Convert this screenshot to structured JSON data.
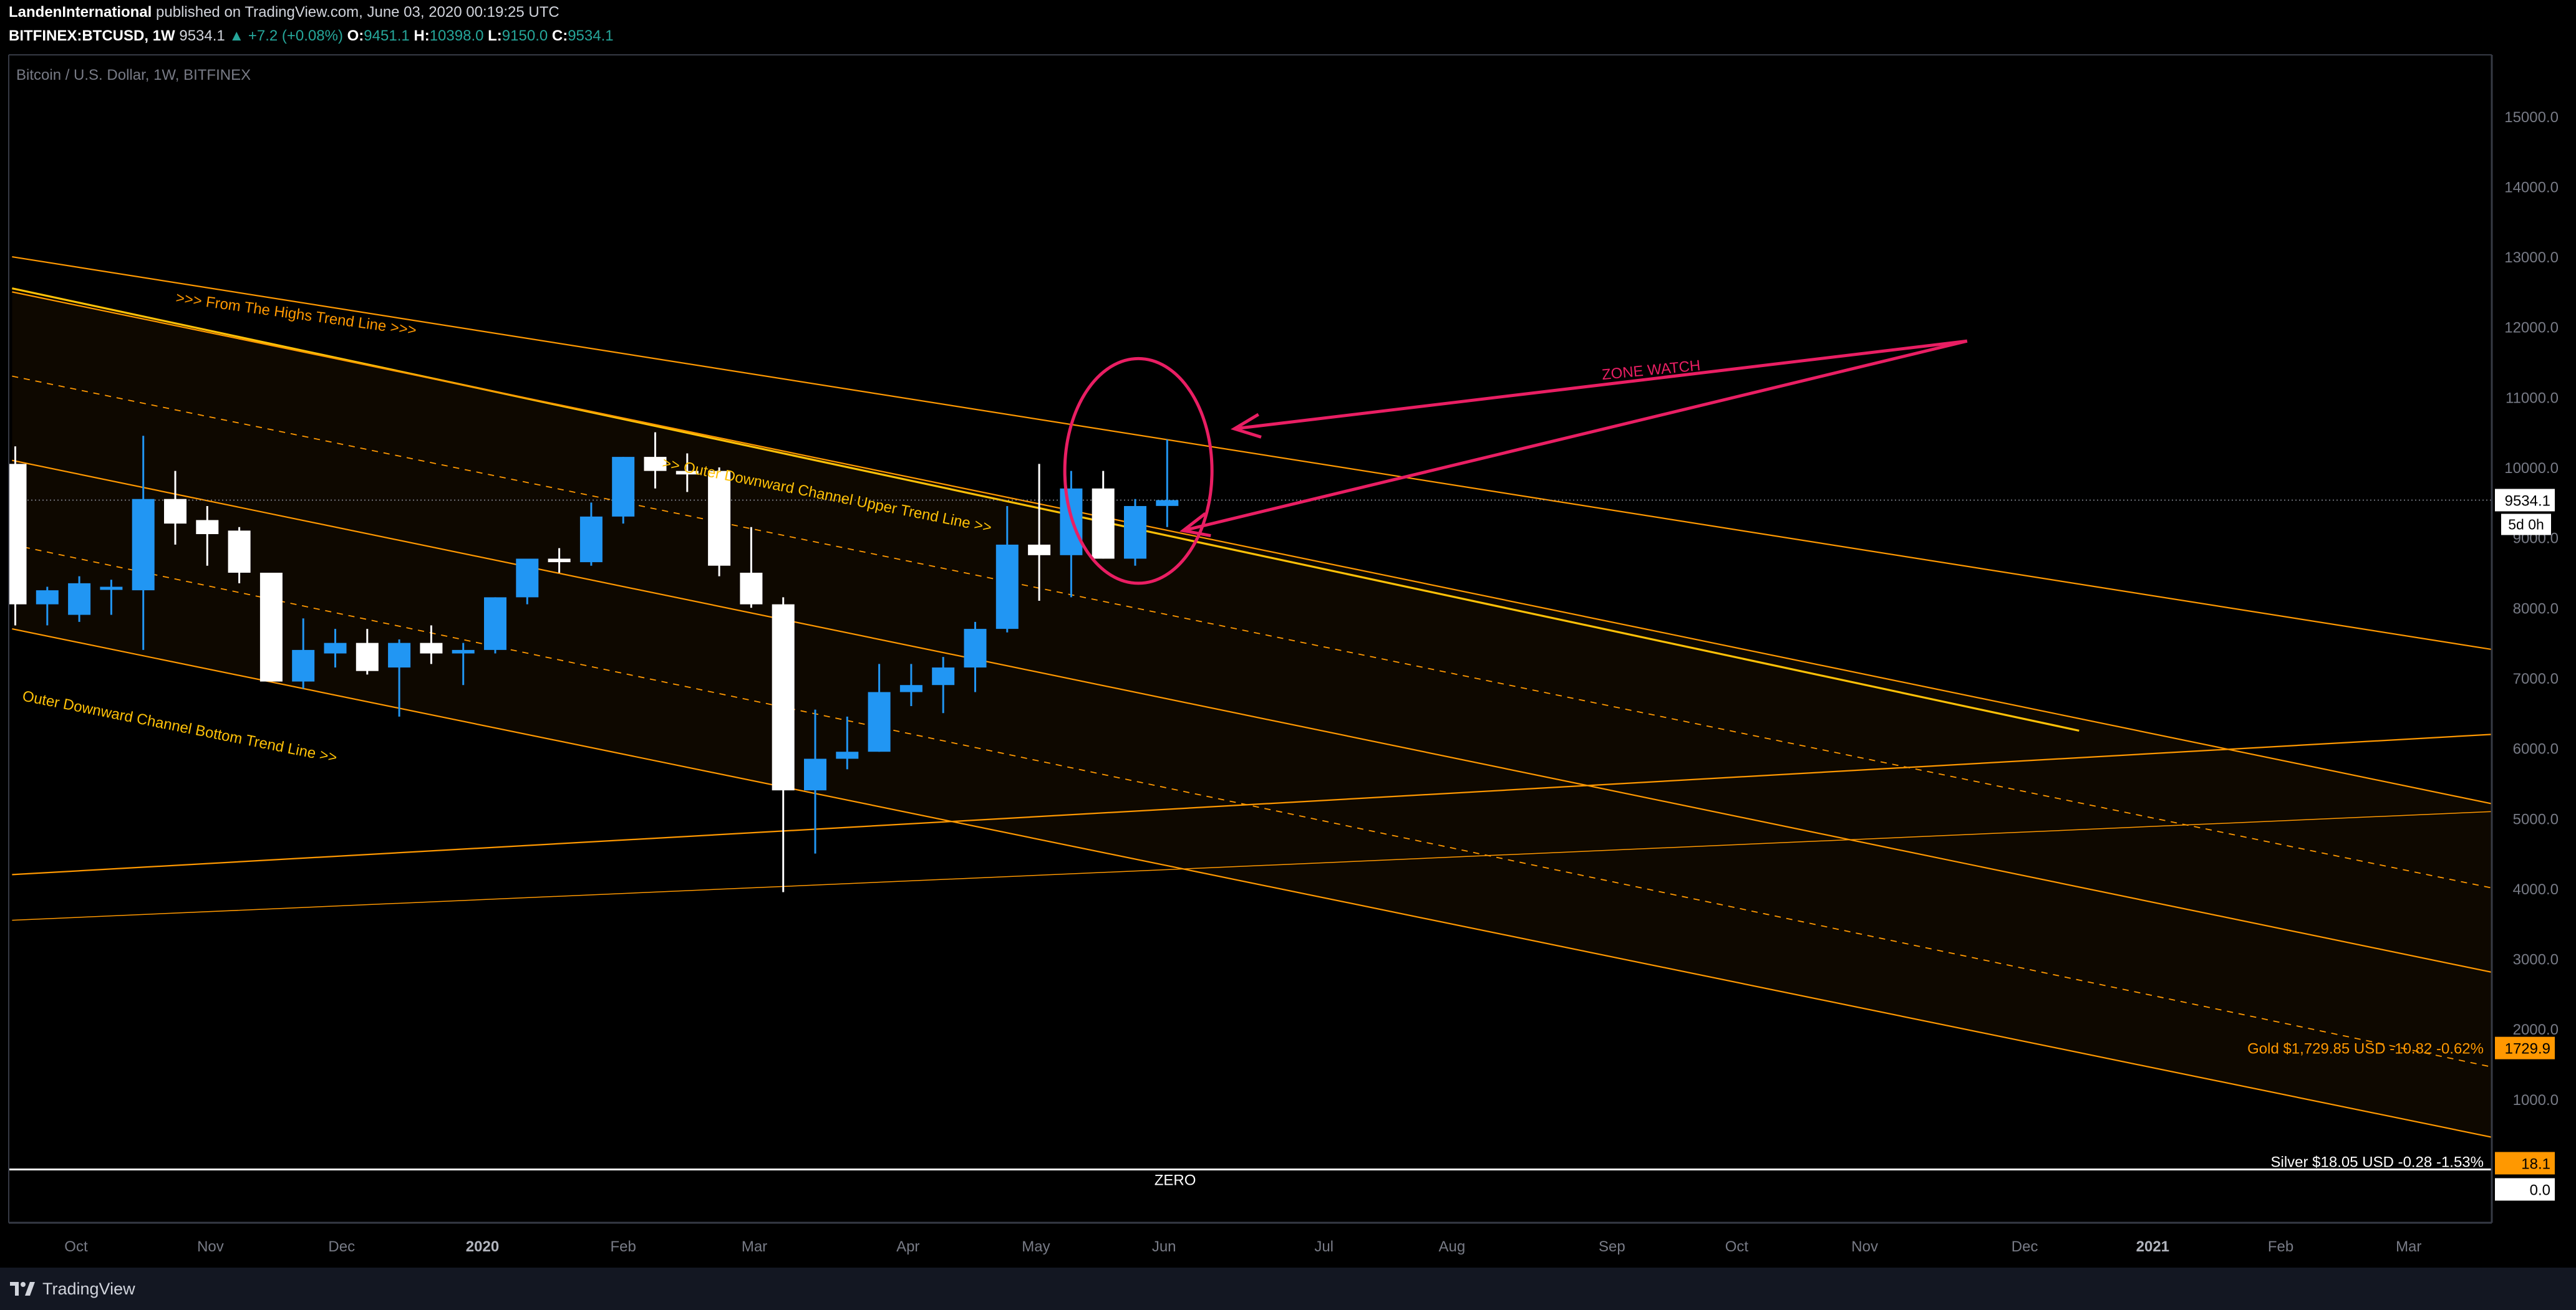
{
  "header": {
    "author": "LandenInternational",
    "published_text": "published on TradingView.com, June 03, 2020 00:19:25 UTC",
    "symbol": "BITFINEX:BTCUSD, 1W",
    "last": "9534.1",
    "change": "▲ +7.2 (+0.08%)",
    "o_label": "O:",
    "o": "9451.1",
    "h_label": "H:",
    "h": "10398.0",
    "l_label": "L:",
    "l": "9150.0",
    "c_label": "C:",
    "c": "9534.1"
  },
  "footer": {
    "brand": "TradingView"
  },
  "colors": {
    "bull": "#2196f3",
    "bear": "#ffffff",
    "trend": "#ff9800",
    "trend_bright": "#ffc107",
    "pink": "#e91e63",
    "axis_bg": "#131722"
  },
  "chart_data": {
    "type": "candlestick",
    "title": "Bitcoin / U.S. Dollar, 1W, BITFINEX",
    "ylim": [
      -800,
      15800
    ],
    "y_ticks": [
      {
        "value": 15000,
        "label": "15000.0"
      },
      {
        "value": 14000,
        "label": "14000.0"
      },
      {
        "value": 13000,
        "label": "13000.0"
      },
      {
        "value": 12000,
        "label": "12000.0"
      },
      {
        "value": 11000,
        "label": "11000.0"
      },
      {
        "value": 10000,
        "label": "10000.0"
      },
      {
        "value": 9000,
        "label": "9000.0"
      },
      {
        "value": 8000,
        "label": "8000.0"
      },
      {
        "value": 7000,
        "label": "7000.0"
      },
      {
        "value": 6000,
        "label": "6000.0"
      },
      {
        "value": 5000,
        "label": "5000.0"
      },
      {
        "value": 4000,
        "label": "4000.0"
      },
      {
        "value": 3000,
        "label": "3000.0"
      },
      {
        "value": 2000,
        "label": "2000.0"
      },
      {
        "value": 1000,
        "label": "1000.0"
      }
    ],
    "x_ticks": [
      {
        "week": 1.9,
        "label": "Oct"
      },
      {
        "week": 6.1,
        "label": "Nov"
      },
      {
        "week": 10.2,
        "label": "Dec"
      },
      {
        "week": 14.6,
        "label": "2020"
      },
      {
        "week": 19.0,
        "label": "Feb"
      },
      {
        "week": 23.1,
        "label": "Mar"
      },
      {
        "week": 27.9,
        "label": "Apr"
      },
      {
        "week": 31.9,
        "label": "May"
      },
      {
        "week": 35.9,
        "label": "Jun"
      },
      {
        "week": 40.9,
        "label": "Jul"
      },
      {
        "week": 44.9,
        "label": "Aug"
      },
      {
        "week": 49.9,
        "label": "Sep"
      },
      {
        "week": 53.8,
        "label": "Oct"
      },
      {
        "week": 57.8,
        "label": "Nov"
      },
      {
        "week": 62.8,
        "label": "Dec"
      },
      {
        "week": 66.8,
        "label": "2021"
      },
      {
        "week": 70.8,
        "label": "Feb"
      },
      {
        "week": 74.8,
        "label": "Mar"
      }
    ],
    "candles": [
      [
        10050,
        10300,
        7750,
        8050
      ],
      [
        8050,
        8300,
        7750,
        8250
      ],
      [
        7900,
        8450,
        7800,
        8350
      ],
      [
        8300,
        8400,
        7900,
        8300
      ],
      [
        8250,
        10450,
        7400,
        9550
      ],
      [
        9550,
        9950,
        8900,
        9200
      ],
      [
        9250,
        9450,
        8600,
        9050
      ],
      [
        9100,
        9150,
        8350,
        8500
      ],
      [
        8500,
        8500,
        6950,
        6950
      ],
      [
        6950,
        7850,
        6850,
        7400
      ],
      [
        7350,
        7700,
        7150,
        7500
      ],
      [
        7500,
        7700,
        7050,
        7100
      ],
      [
        7150,
        7550,
        6450,
        7500
      ],
      [
        7500,
        7750,
        7200,
        7350
      ],
      [
        7350,
        7500,
        6900,
        7400
      ],
      [
        7400,
        8150,
        7350,
        8150
      ],
      [
        8150,
        8700,
        8050,
        8700
      ],
      [
        8700,
        8850,
        8500,
        8650
      ],
      [
        8650,
        9500,
        8600,
        9300
      ],
      [
        9300,
        10150,
        9200,
        10150
      ],
      [
        10150,
        10500,
        9700,
        9950
      ],
      [
        9950,
        10200,
        9650,
        9900
      ],
      [
        9950,
        10000,
        8450,
        8600
      ],
      [
        8500,
        9150,
        8000,
        8050
      ],
      [
        8050,
        8150,
        3950,
        5400
      ],
      [
        5400,
        6550,
        4500,
        5850
      ],
      [
        5850,
        6450,
        5700,
        5950
      ],
      [
        5950,
        7200,
        5950,
        6800
      ],
      [
        6800,
        7200,
        6600,
        6900
      ],
      [
        6900,
        7300,
        6500,
        7150
      ],
      [
        7150,
        7800,
        6800,
        7700
      ],
      [
        7700,
        9450,
        7650,
        8900
      ],
      [
        8900,
        10050,
        8100,
        8750
      ],
      [
        8750,
        9950,
        8150,
        9700
      ],
      [
        9700,
        9950,
        8700,
        8700
      ],
      [
        8700,
        9550,
        8600,
        9450
      ],
      [
        9451.1,
        10398.0,
        9150.0,
        9534.1
      ]
    ],
    "price_line": {
      "value": 9534.1,
      "label": "9534.1",
      "countdown": "5d 0h"
    },
    "right_labels": {
      "gold_value": 1729.9,
      "gold_tag": "1729.9",
      "gold_text": "Gold $1,729.85 USD  -10.82 -0.62%",
      "silver_value": 18.1,
      "silver_tag": "18.1",
      "silver_text": "Silver  $18.05 USD  -0.28  -1.53%",
      "zero_tag": "0.0"
    },
    "zero_line": {
      "value": 0,
      "label": "ZERO"
    },
    "trend_lines": [
      {
        "p1": [
          -0.1,
          13000
        ],
        "p2": [
          77.5,
          7400
        ],
        "color": "#ff9800",
        "width": 2.2,
        "dash": false
      },
      {
        "p1": [
          -0.1,
          12550
        ],
        "p2": [
          64.5,
          6250
        ],
        "color": "#ffc107",
        "width": 3.2,
        "dash": false
      },
      {
        "p1": [
          -0.1,
          12500
        ],
        "p2": [
          77.5,
          5200
        ],
        "color": "#ff9800",
        "width": 2.2,
        "dash": false
      },
      {
        "p1": [
          -0.1,
          11300
        ],
        "p2": [
          77.5,
          4000
        ],
        "color": "#ff9800",
        "width": 1.8,
        "dash": true
      },
      {
        "p1": [
          -0.1,
          10100
        ],
        "p2": [
          77.5,
          2800
        ],
        "color": "#ff9800",
        "width": 2.2,
        "dash": false
      },
      {
        "p1": [
          -0.1,
          8900
        ],
        "p2": [
          77.5,
          1450
        ],
        "color": "#ff9800",
        "width": 1.8,
        "dash": true
      },
      {
        "p1": [
          -0.1,
          7700
        ],
        "p2": [
          77.5,
          450
        ],
        "color": "#ff9800",
        "width": 2.2,
        "dash": false
      },
      {
        "p1": [
          -0.1,
          4200
        ],
        "p2": [
          77.5,
          6200
        ],
        "color": "#ff9800",
        "width": 2.2,
        "dash": false
      },
      {
        "p1": [
          -0.1,
          3550
        ],
        "p2": [
          77.5,
          5100
        ],
        "color": "#ff9800",
        "width": 1.5,
        "dash": false
      }
    ],
    "channel_fill": {
      "top": [
        [
          -0.1,
          12500
        ],
        [
          77.5,
          5200
        ]
      ],
      "bottom": [
        [
          -0.1,
          7700
        ],
        [
          77.5,
          450
        ]
      ]
    },
    "annotations": [
      {
        "id": "highs",
        "text": ">>> From The Highs Trend Line >>>",
        "week": 5.0,
        "value": 12350,
        "angle": 7.8,
        "color": "#ff9800"
      },
      {
        "id": "upper",
        "text": ">> Outer Downward Channel Upper Trend Line >>",
        "week": 20.2,
        "value": 10000,
        "angle": 11.2,
        "color": "#ffc107"
      },
      {
        "id": "bottom",
        "text": "Outer Downward Channel Bottom Trend Line >>",
        "week": 0.2,
        "value": 6680,
        "angle": 11.2,
        "color": "#ffc107"
      },
      {
        "id": "zone",
        "text": "ZONE WATCH",
        "week": 49.6,
        "value": 11250,
        "angle": -5.5,
        "color": "#e91e63"
      }
    ],
    "zone_circle": {
      "week": 35.1,
      "value": 9950,
      "rx_weeks": 2.3,
      "ry_value": 1600
    },
    "zone_arrows": [
      {
        "from": [
          61.0,
          11800
        ],
        "to": [
          38.1,
          10550
        ]
      },
      {
        "from": [
          61.0,
          11800
        ],
        "to": [
          36.5,
          9100
        ]
      }
    ]
  }
}
